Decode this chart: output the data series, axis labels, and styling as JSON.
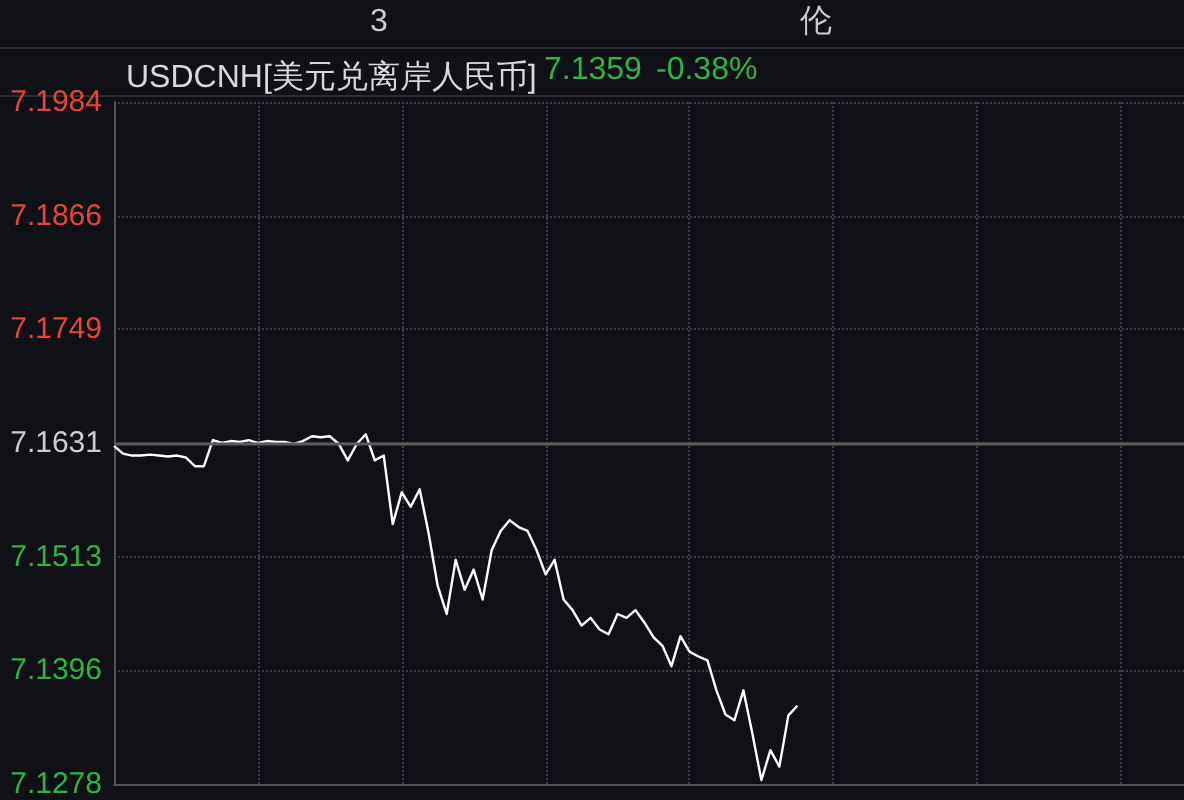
{
  "chart_data": {
    "type": "line",
    "title": "USDCNH[美元兑离岸人民币]",
    "annotations": [
      "7.1359",
      "-0.38%",
      "3",
      "伦"
    ],
    "categories": [
      null,
      null,
      null,
      null,
      null,
      null,
      null,
      null,
      null,
      null,
      null,
      null,
      null,
      null,
      null,
      null,
      null,
      null,
      null,
      null,
      null,
      null,
      null,
      null,
      null,
      null,
      null,
      null,
      null,
      null,
      null,
      null,
      null,
      null,
      null,
      null,
      null,
      null,
      null,
      null,
      null,
      null,
      null,
      null,
      null,
      null,
      null,
      null,
      null,
      null,
      null,
      null,
      null,
      null,
      null,
      null,
      null,
      null,
      null,
      null,
      null,
      null,
      null,
      null,
      null,
      null,
      null,
      null,
      null,
      null,
      null,
      null,
      null,
      null,
      null,
      null,
      null,
      null,
      null,
      null,
      null,
      null,
      null,
      null,
      null,
      null,
      null,
      null,
      null,
      null,
      null,
      null,
      null,
      null,
      null,
      null,
      null,
      null,
      null,
      null,
      null,
      null,
      null,
      null,
      null,
      null,
      null,
      null,
      null,
      null,
      null,
      null,
      null,
      null,
      null,
      null,
      null,
      null,
      null,
      null
    ],
    "series": [
      {
        "color": "#ffffff",
        "values": [
          7.1628,
          7.162,
          7.1618,
          7.1618,
          7.1619,
          7.1618,
          7.1617,
          7.1618,
          7.1616,
          7.1607,
          7.1607,
          7.1634,
          7.1631,
          7.1633,
          7.1632,
          7.1634,
          7.1631,
          7.1633,
          7.1632,
          7.1632,
          7.163,
          7.1633,
          7.1638,
          7.1637,
          7.1638,
          7.163,
          7.1613,
          7.163,
          7.164,
          7.1613,
          7.1618,
          7.1547,
          7.158,
          7.1565,
          7.1583,
          7.1537,
          7.1483,
          7.1454,
          7.151,
          7.1479,
          7.15,
          7.1469,
          7.152,
          7.154,
          7.1551,
          7.1544,
          7.154,
          7.152,
          7.1495,
          7.151,
          7.1469,
          7.1458,
          7.1442,
          7.145,
          7.1438,
          7.1433,
          7.1454,
          7.145,
          7.1458,
          7.1445,
          7.143,
          7.1421,
          7.14,
          7.1431,
          7.1415,
          7.141,
          7.1406,
          7.1375,
          7.135,
          7.1344,
          7.1375,
          7.133,
          7.1282,
          7.1313,
          7.1296,
          7.1349,
          7.1359,
          null,
          null,
          null,
          null,
          null,
          null,
          null,
          null,
          null,
          null,
          null,
          null,
          null,
          null,
          null,
          null,
          null,
          null,
          null,
          null,
          null,
          null,
          null,
          null,
          null,
          null,
          null,
          null,
          null,
          null,
          null,
          null,
          null,
          null,
          null,
          null,
          null,
          null,
          null,
          null,
          null,
          null,
          null
        ]
      }
    ],
    "ylim": [
      7.1278,
      7.1984
    ],
    "yticks": [
      7.1278,
      7.1396,
      7.1513,
      7.1631,
      7.1749,
      7.1866,
      7.1984
    ],
    "ref_lines": [
      {
        "axis": "y",
        "value": 7.1631,
        "color": "#5a5a5a"
      }
    ],
    "grid": true,
    "line_style": "solid"
  }
}
